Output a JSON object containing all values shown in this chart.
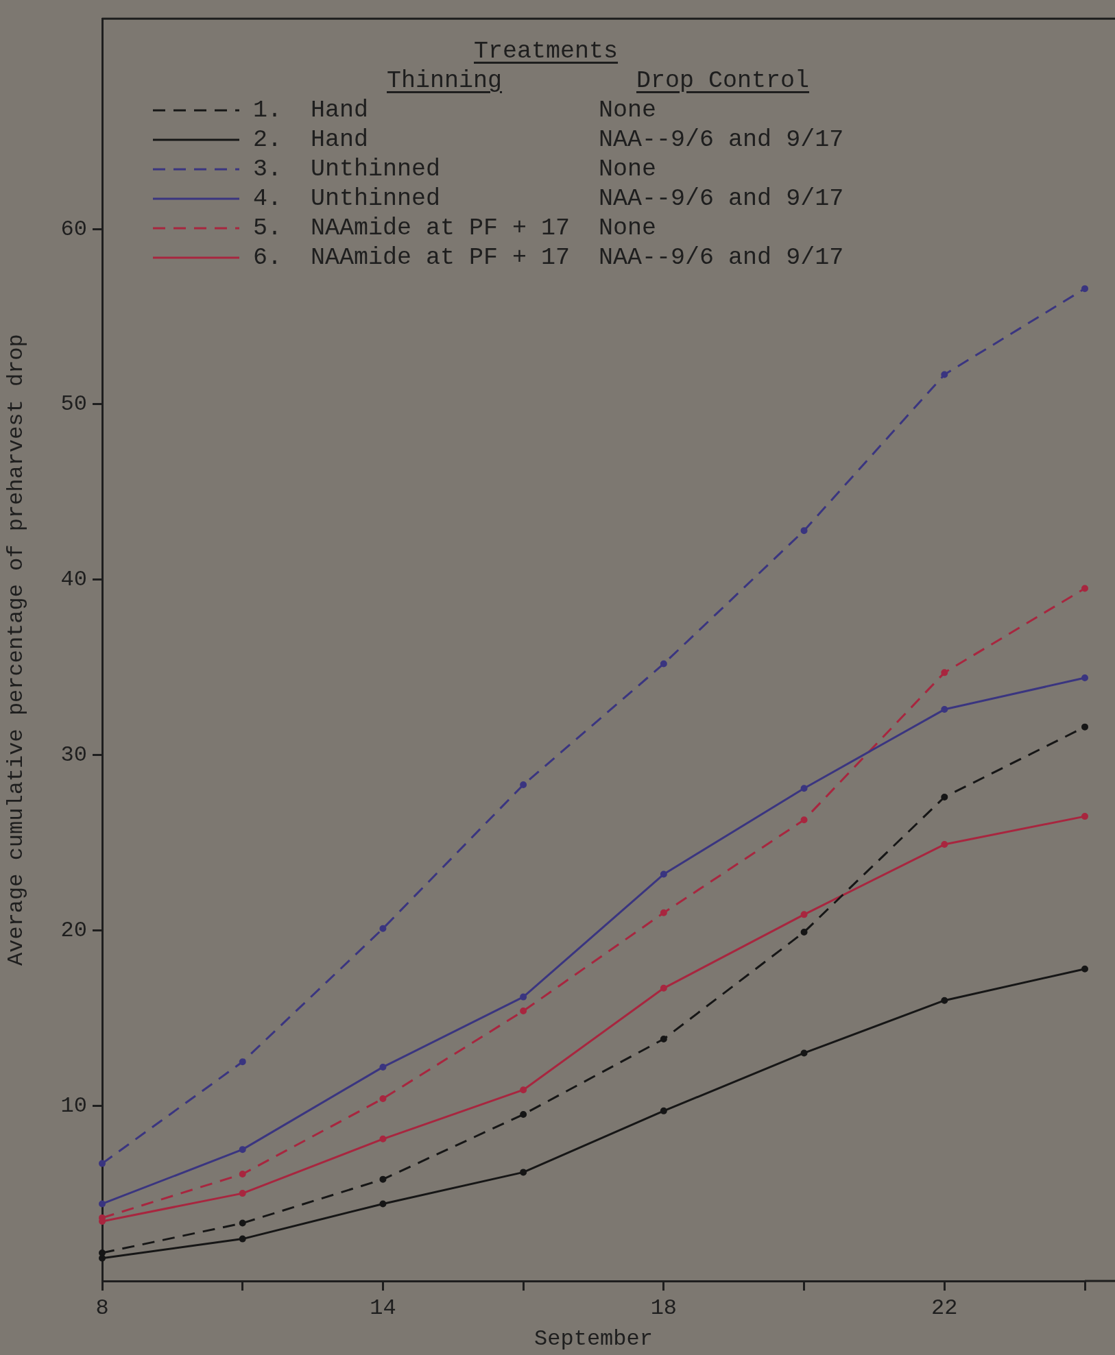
{
  "chart_data": {
    "type": "line",
    "xlabel": "September",
    "ylabel": "Average cumulative percentage of preharvest drop",
    "legend_title": "Treatments",
    "annotations": [
      "Thinning",
      "Drop Control"
    ],
    "categories": [
      "8",
      null,
      "14",
      null,
      "18",
      null,
      "22",
      null
    ],
    "ylim": [
      0,
      72
    ],
    "yticks": [
      10,
      20,
      30,
      40,
      50,
      60
    ],
    "legend": "top left",
    "marker": "circle",
    "series": [
      {
        "name": "1.  Hand                None",
        "color": "#161616",
        "line_style": "dashed",
        "values": [
          1.6,
          3.3,
          5.8,
          9.5,
          13.8,
          19.9,
          27.6,
          31.6
        ]
      },
      {
        "name": "2.  Hand                NAA--9/6 and 9/17",
        "color": "#161616",
        "line_style": "solid",
        "values": [
          1.3,
          2.4,
          4.4,
          6.2,
          9.7,
          13.0,
          16.0,
          17.8
        ]
      },
      {
        "name": "3.  Unthinned           None",
        "color": "#3a3580",
        "line_style": "dashed",
        "values": [
          6.7,
          12.5,
          20.1,
          28.3,
          35.2,
          42.8,
          51.7,
          56.6
        ]
      },
      {
        "name": "4.  Unthinned           NAA--9/6 and 9/17",
        "color": "#3a3580",
        "line_style": "solid",
        "values": [
          4.4,
          7.5,
          12.2,
          16.2,
          23.2,
          28.1,
          32.6,
          34.4
        ]
      },
      {
        "name": "5.  NAAmide at PF + 17  None",
        "color": "#a8263f",
        "line_style": "dashed",
        "values": [
          3.6,
          6.1,
          10.4,
          15.4,
          21.0,
          26.3,
          34.7,
          39.5
        ]
      },
      {
        "name": "6.  NAAmide at PF + 17  NAA--9/6 and 9/17",
        "color": "#a8263f",
        "line_style": "solid",
        "values": [
          3.4,
          5.0,
          8.1,
          10.9,
          16.7,
          20.9,
          24.9,
          26.5
        ]
      }
    ]
  }
}
